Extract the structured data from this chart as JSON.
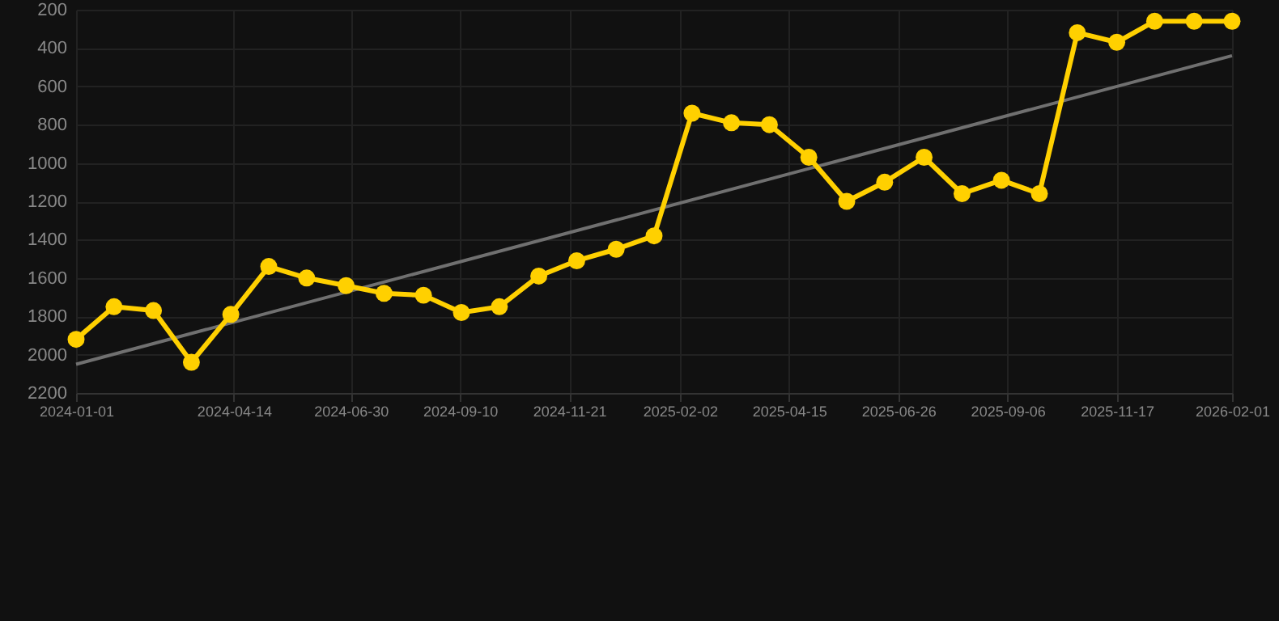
{
  "chart_data": {
    "type": "line",
    "x": [
      "2024-01-01",
      "2024-01-26",
      "2024-02-21",
      "2024-03-17",
      "2024-04-12",
      "2024-05-07",
      "2024-06-01",
      "2024-06-27",
      "2024-07-22",
      "2024-08-17",
      "2024-09-11",
      "2024-10-06",
      "2024-11-01",
      "2024-11-26",
      "2024-12-22",
      "2025-01-16",
      "2025-02-10",
      "2025-03-08",
      "2025-04-02",
      "2025-04-28",
      "2025-05-23",
      "2025-06-17",
      "2025-07-13",
      "2025-08-07",
      "2025-09-02",
      "2025-09-27",
      "2025-10-22",
      "2025-11-17",
      "2025-12-12",
      "2026-01-07",
      "2026-02-01"
    ],
    "series": [
      {
        "color": "#ffd000",
        "values": [
          1920,
          1750,
          1770,
          2040,
          1790,
          1540,
          1600,
          1640,
          1680,
          1690,
          1780,
          1750,
          1590,
          1510,
          1450,
          1380,
          740,
          790,
          800,
          970,
          1200,
          1100,
          970,
          1160,
          1090,
          1160,
          320,
          370,
          260,
          260,
          260
        ]
      },
      {
        "type": "line",
        "marker": "none",
        "color": "#707070",
        "x": [
          "2024-01-01",
          "2026-02-01"
        ],
        "values": [
          2050,
          440
        ]
      }
    ],
    "marker": "circle",
    "xlim": [
      "2024-01-01",
      "2026-02-01"
    ],
    "xticks": [
      "2024-01-01",
      "2024-04-14",
      "2024-06-30",
      "2024-09-10",
      "2024-11-21",
      "2025-02-02",
      "2025-04-15",
      "2025-06-26",
      "2025-09-06",
      "2025-11-17",
      "2026-02-01"
    ],
    "ylim": [
      2200,
      200
    ],
    "yticks": [
      200,
      400,
      600,
      800,
      1000,
      1200,
      1400,
      1600,
      1800,
      2000,
      2200
    ],
    "grid": true
  }
}
